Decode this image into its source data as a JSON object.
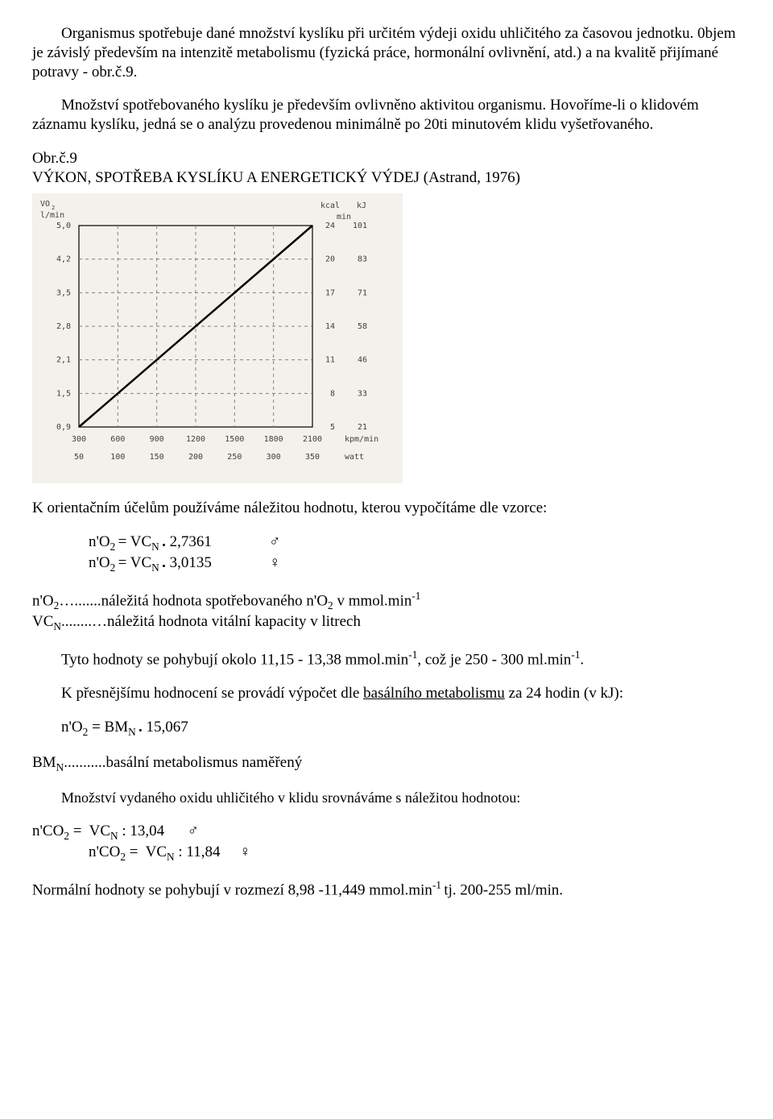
{
  "para1": "Organismus spotřebuje dané množství kyslíku při určitém výdeji oxidu uhličitého za časovou jednotku. 0bjem je závislý především na intenzitě metabolismu (fyzická práce, hormonální ovlivnění, atd.) a na kvalitě přijímané potravy - obr.č.9.",
  "para2": "Množství spotřebovaného kyslíku je především ovlivněno aktivitou organismu. Hovoříme-li o klidovém záznamu kyslíku, jedná se o analýzu provedenou minimálně po 20ti minutovém klidu vyšetřovaného.",
  "fig_label": "Obr.č.9",
  "fig_title": "VÝKON, SPOTŘEBA KYSLÍKU A ENERGETICKÝ VÝDEJ (Astrand, 1976)",
  "para3": "K orientačním účelům používáme náležitou hodnotu, kterou vypočítáme dle vzorce:",
  "formula1_lhs": "n'O",
  "formula1_rest": " = VC",
  "formula1_gender": "♂",
  "formula1_val": " 2,7361",
  "formula2_val": " 3,0135",
  "formula2_gender": "♀",
  "def1_lhs": "n'O",
  "def1_rest": "….......náležitá hodnota spotřebovaného n'O",
  "def1_unit": " v mmol.min",
  "def2_lhs": "VC",
  "def2_rest": "........…náležitá hodnota vitální kapacity v litrech",
  "para4_a": "Tyto hodnoty se pohybují okolo 11,15 - 13,38 mmol.min",
  "para4_b": ", což je 250 - 300 ml.min",
  "para4_c": ".",
  "para5_a": "K přesnějšímu hodnocení se provádí výpočet dle ",
  "para5_underlined": "basálního metabolismu",
  "para5_b": " za 24 hodin (v kJ):",
  "formula3_val": " 15,067",
  "def3_lhs": "BM",
  "def3_rest": "...........basální metabolismus naměřený",
  "para6": "Množství vydaného oxidu uhličitého v klidu srovnáváme s náležitou hodnotou:",
  "formula4_val": " : 13,04",
  "formula5_val": " : 11,84",
  "para7_a": "Normální hodnoty se pohybují v rozmezí 8,98 -11,449 mmol.min",
  "para7_b": " tj. 200-255 ml/min.",
  "chart": {
    "type": "line",
    "bg": "#f3f1ec",
    "grid_color": "#808080",
    "text_color": "#404040",
    "line_color": "#000000",
    "y_label_top": "VO",
    "y_label_sub": "2",
    "y_unit": "l/min",
    "kcal_label": "kcal",
    "kj_label": "kJ",
    "min_label": "min",
    "y_ticks": [
      "5,0",
      "4,2",
      "3,5",
      "2,8",
      "2,1",
      "1,5",
      "0,9"
    ],
    "kcal_ticks": [
      "24",
      "20",
      "17",
      "14",
      "11",
      "8",
      "5"
    ],
    "kj_ticks": [
      "101",
      "83",
      "71",
      "58",
      "46",
      "33",
      "21"
    ],
    "x_kpm": [
      "300",
      "600",
      "900",
      "1200",
      "1500",
      "1800",
      "2100"
    ],
    "x_kpm_unit": "kpm/min",
    "x_watt": [
      "50",
      "100",
      "150",
      "200",
      "250",
      "300",
      "350"
    ],
    "x_watt_unit": "watt",
    "font_family": "monospace",
    "font_size_axis": 10
  }
}
